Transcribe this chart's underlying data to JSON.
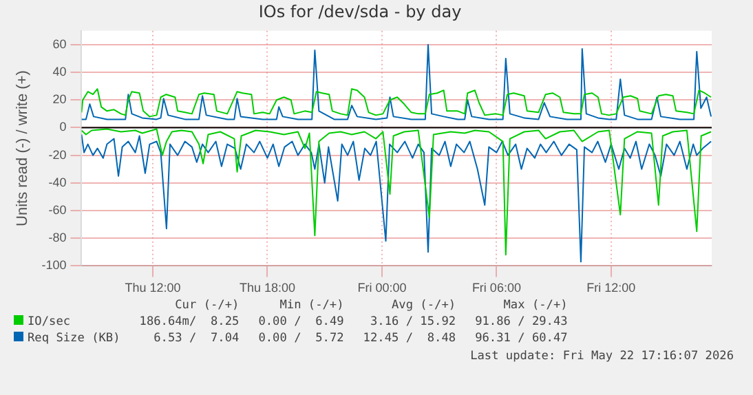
{
  "chart_data": {
    "type": "line",
    "title": "IOs for /dev/sda - by day",
    "ylabel": "Units read (-) / write (+)",
    "xlim": [
      "2026-05-21T08:16",
      "2026-05-22T17:16"
    ],
    "ylim": [
      -100,
      70
    ],
    "xticks": [
      {
        "value": "2026-05-21T12:00",
        "label": "Thu 12:00"
      },
      {
        "value": "2026-05-21T18:00",
        "label": "Thu 18:00"
      },
      {
        "value": "2026-05-22T00:00",
        "label": "Fri 00:00"
      },
      {
        "value": "2026-05-22T06:00",
        "label": "Fri 06:00"
      },
      {
        "value": "2026-05-22T12:00",
        "label": "Fri 12:00"
      }
    ],
    "yticks": [
      -100,
      -80,
      -60,
      -40,
      -20,
      0,
      20,
      40,
      60
    ],
    "grid": true,
    "legend": "bottom",
    "ref_lines": [
      {
        "axis": "y",
        "value": 0,
        "color": "#000000"
      }
    ],
    "annotations": [
      "Cur (-/+)",
      "Min (-/+)",
      "Avg (-/+)",
      "Max (-/+)",
      "186.64m/  8.25",
      "0.00 /  6.49",
      "3.16 / 15.92",
      "91.86 / 29.43",
      "6.53 /  7.04",
      "0.00 /  5.72",
      "12.45 /  8.48",
      "96.31 / 60.47",
      "Last update: Fri May 22 17:16:07 2026"
    ],
    "series": [
      {
        "name": "IO/sec",
        "color": "#00cc00",
        "x": [
          "2026-05-21T08:16",
          "2026-05-21T08:20",
          "2026-05-21T08:36",
          "2026-05-21T08:52",
          "2026-05-21T09:06",
          "2026-05-21T09:18",
          "2026-05-21T09:36",
          "2026-05-21T09:58",
          "2026-05-21T10:20",
          "2026-05-21T10:34",
          "2026-05-21T10:43",
          "2026-05-21T10:54",
          "2026-05-21T11:18",
          "2026-05-21T11:30",
          "2026-05-21T11:50",
          "2026-05-21T12:12",
          "2026-05-21T12:25",
          "2026-05-21T12:42",
          "2026-05-21T13:10",
          "2026-05-21T13:18",
          "2026-05-21T13:41",
          "2026-05-21T14:03",
          "2026-05-21T14:25",
          "2026-05-21T14:42",
          "2026-05-21T15:12",
          "2026-05-21T15:21",
          "2026-05-21T15:54",
          "2026-05-21T16:25",
          "2026-05-21T16:42",
          "2026-05-21T17:10",
          "2026-05-21T17:18",
          "2026-05-21T17:45",
          "2026-05-21T18:07",
          "2026-05-21T18:29",
          "2026-05-21T18:52",
          "2026-05-21T19:14",
          "2026-05-21T19:24",
          "2026-05-21T19:58",
          "2026-05-21T20:20",
          "2026-05-21T20:34",
          "2026-05-21T20:52",
          "2026-05-21T21:14",
          "2026-05-21T21:24",
          "2026-05-21T21:50",
          "2026-05-21T22:12",
          "2026-05-21T22:25",
          "2026-05-21T22:42",
          "2026-05-21T23:05",
          "2026-05-21T23:18",
          "2026-05-21T23:41",
          "2026-05-22T00:03",
          "2026-05-22T00:25",
          "2026-05-22T00:48",
          "2026-05-22T01:10",
          "2026-05-22T01:32",
          "2026-05-22T01:54",
          "2026-05-22T02:16",
          "2026-05-22T02:29",
          "2026-05-22T02:54",
          "2026-05-22T03:14",
          "2026-05-22T03:24",
          "2026-05-22T03:58",
          "2026-05-22T04:20",
          "2026-05-22T04:29",
          "2026-05-22T04:52",
          "2026-05-22T05:05",
          "2026-05-22T05:23",
          "2026-05-22T05:58",
          "2026-05-22T06:20",
          "2026-05-22T06:34",
          "2026-05-22T06:54",
          "2026-05-22T07:27",
          "2026-05-22T07:36",
          "2026-05-22T08:12",
          "2026-05-22T08:34",
          "2026-05-22T08:56",
          "2026-05-22T09:19",
          "2026-05-22T09:30",
          "2026-05-22T10:03",
          "2026-05-22T10:25",
          "2026-05-22T10:36",
          "2026-05-22T11:00",
          "2026-05-22T11:19",
          "2026-05-22T11:30",
          "2026-05-22T11:54",
          "2026-05-22T12:16",
          "2026-05-22T12:38",
          "2026-05-22T13:01",
          "2026-05-22T13:23",
          "2026-05-22T13:30",
          "2026-05-22T14:07",
          "2026-05-22T14:29",
          "2026-05-22T14:52",
          "2026-05-22T15:14",
          "2026-05-22T15:24",
          "2026-05-22T15:58",
          "2026-05-22T16:20",
          "2026-05-22T16:36",
          "2026-05-22T16:54",
          "2026-05-22T17:14"
        ],
        "values": [
          11,
          20,
          26,
          24,
          28,
          15,
          12,
          13,
          10,
          9,
          20,
          26,
          25,
          12,
          8,
          9,
          22,
          24,
          22,
          12,
          11,
          10,
          24,
          25,
          24,
          12,
          10,
          26,
          25,
          24,
          10,
          11,
          10,
          20,
          22,
          20,
          10,
          12,
          11,
          26,
          25,
          24,
          12,
          10,
          9,
          28,
          27,
          22,
          11,
          9,
          10,
          20,
          22,
          17,
          11,
          10,
          10,
          24,
          25,
          27,
          12,
          12,
          10,
          25,
          27,
          18,
          9,
          10,
          9,
          24,
          25,
          23,
          12,
          11,
          24,
          25,
          22,
          11,
          10,
          10,
          24,
          25,
          22,
          10,
          9,
          10,
          22,
          23,
          21,
          12,
          10,
          23,
          24,
          23,
          12,
          11,
          10,
          27,
          25,
          22
        ]
      },
      {
        "color": "#00cc00",
        "x": [
          "2026-05-21T08:16",
          "2026-05-21T08:30",
          "2026-05-21T08:48",
          "2026-05-21T09:36",
          "2026-05-21T10:20",
          "2026-05-21T11:05",
          "2026-05-21T11:27",
          "2026-05-21T12:12",
          "2026-05-21T12:30",
          "2026-05-21T12:43",
          "2026-05-21T13:00",
          "2026-05-21T13:30",
          "2026-05-21T14:03",
          "2026-05-21T14:25",
          "2026-05-21T14:38",
          "2026-05-21T14:54",
          "2026-05-21T15:32",
          "2026-05-21T16:16",
          "2026-05-21T16:25",
          "2026-05-21T16:38",
          "2026-05-21T17:23",
          "2026-05-21T18:07",
          "2026-05-21T18:52",
          "2026-05-21T19:36",
          "2026-05-21T19:58",
          "2026-05-21T20:12",
          "2026-05-21T20:29",
          "2026-05-21T20:42",
          "2026-05-21T21:14",
          "2026-05-21T21:50",
          "2026-05-21T22:25",
          "2026-05-21T23:05",
          "2026-05-21T23:41",
          "2026-05-22T00:03",
          "2026-05-22T00:25",
          "2026-05-22T00:36",
          "2026-05-22T01:10",
          "2026-05-22T01:54",
          "2026-05-22T02:29",
          "2026-05-22T02:42",
          "2026-05-22T03:36",
          "2026-05-22T04:20",
          "2026-05-22T04:52",
          "2026-05-22T05:36",
          "2026-05-22T06:20",
          "2026-05-22T06:29",
          "2026-05-22T06:42",
          "2026-05-22T07:27",
          "2026-05-22T08:12",
          "2026-05-22T08:34",
          "2026-05-22T09:19",
          "2026-05-22T10:03",
          "2026-05-22T10:29",
          "2026-05-22T11:19",
          "2026-05-22T11:54",
          "2026-05-22T12:29",
          "2026-05-22T12:42",
          "2026-05-22T13:23",
          "2026-05-22T14:07",
          "2026-05-22T14:29",
          "2026-05-22T14:42",
          "2026-05-22T15:14",
          "2026-05-22T15:58",
          "2026-05-22T16:29",
          "2026-05-22T16:43",
          "2026-05-22T17:14"
        ],
        "values": [
          -2,
          -5,
          -2,
          -1,
          -3,
          -2,
          -4,
          -1,
          -20,
          -10,
          -3,
          -2,
          -3,
          -12,
          -26,
          -5,
          -3,
          -8,
          -32,
          -6,
          -2,
          -3,
          -5,
          -3,
          -15,
          -4,
          -78,
          -10,
          -4,
          -3,
          -5,
          -3,
          -8,
          -3,
          -48,
          -6,
          -3,
          -2,
          -65,
          -5,
          -3,
          -4,
          -2,
          -3,
          -10,
          -92,
          -8,
          -3,
          -2,
          -8,
          -3,
          -2,
          -10,
          -3,
          -2,
          -63,
          -8,
          -3,
          -4,
          -56,
          -6,
          -3,
          -2,
          -75,
          -6,
          -3
        ]
      },
      {
        "name": "Req Size (KB)",
        "color": "#0066b3",
        "x": [
          "2026-05-21T08:16",
          "2026-05-21T08:30",
          "2026-05-21T08:42",
          "2026-05-21T08:54",
          "2026-05-21T09:36",
          "2026-05-21T10:20",
          "2026-05-21T10:34",
          "2026-05-21T10:43",
          "2026-05-21T10:54",
          "2026-05-21T11:27",
          "2026-05-21T12:12",
          "2026-05-21T12:25",
          "2026-05-21T12:34",
          "2026-05-21T12:48",
          "2026-05-21T13:41",
          "2026-05-21T14:25",
          "2026-05-21T14:36",
          "2026-05-21T14:48",
          "2026-05-21T15:54",
          "2026-05-21T16:16",
          "2026-05-21T16:25",
          "2026-05-21T16:36",
          "2026-05-21T17:45",
          "2026-05-21T18:29",
          "2026-05-21T18:36",
          "2026-05-21T18:48",
          "2026-05-21T19:36",
          "2026-05-21T20:20",
          "2026-05-21T20:29",
          "2026-05-21T20:42",
          "2026-05-21T21:14",
          "2026-05-21T21:30",
          "2026-05-21T22:12",
          "2026-05-21T22:25",
          "2026-05-21T22:42",
          "2026-05-21T23:41",
          "2026-05-22T00:16",
          "2026-05-22T00:25",
          "2026-05-22T00:36",
          "2026-05-22T01:32",
          "2026-05-22T02:16",
          "2026-05-22T02:25",
          "2026-05-22T02:36",
          "2026-05-22T03:14",
          "2026-05-22T03:58",
          "2026-05-22T04:20",
          "2026-05-22T04:29",
          "2026-05-22T04:42",
          "2026-05-22T05:36",
          "2026-05-22T06:20",
          "2026-05-22T06:29",
          "2026-05-22T06:42",
          "2026-05-22T07:27",
          "2026-05-22T08:12",
          "2026-05-22T08:30",
          "2026-05-22T08:48",
          "2026-05-22T09:41",
          "2026-05-22T10:25",
          "2026-05-22T10:29",
          "2026-05-22T10:42",
          "2026-05-22T11:19",
          "2026-05-22T11:54",
          "2026-05-22T12:16",
          "2026-05-22T12:29",
          "2026-05-22T12:42",
          "2026-05-22T13:23",
          "2026-05-22T14:07",
          "2026-05-22T14:24",
          "2026-05-22T14:36",
          "2026-05-22T15:36",
          "2026-05-22T16:20",
          "2026-05-22T16:29",
          "2026-05-22T16:42",
          "2026-05-22T17:00",
          "2026-05-22T17:14"
        ],
        "values": [
          6,
          6,
          17,
          8,
          6,
          6,
          6,
          24,
          10,
          7,
          6,
          7,
          21,
          9,
          6,
          6,
          23,
          9,
          6,
          6,
          21,
          8,
          6,
          6,
          15,
          8,
          6,
          6,
          56,
          12,
          8,
          6,
          6,
          16,
          8,
          6,
          7,
          22,
          8,
          6,
          6,
          60,
          10,
          8,
          6,
          6,
          20,
          8,
          6,
          6,
          50,
          10,
          7,
          6,
          18,
          8,
          6,
          6,
          57,
          10,
          7,
          6,
          6,
          35,
          9,
          6,
          6,
          22,
          8,
          6,
          6,
          55,
          14,
          22,
          8
        ]
      },
      {
        "color": "#0066b3",
        "x": [
          "2026-05-21T08:16",
          "2026-05-21T08:24",
          "2026-05-21T08:36",
          "2026-05-21T08:52",
          "2026-05-21T09:06",
          "2026-05-21T09:24",
          "2026-05-21T09:36",
          "2026-05-21T09:58",
          "2026-05-21T10:12",
          "2026-05-21T10:24",
          "2026-05-21T10:43",
          "2026-05-21T11:05",
          "2026-05-21T11:18",
          "2026-05-21T11:36",
          "2026-05-21T11:50",
          "2026-05-21T12:12",
          "2026-05-21T12:25",
          "2026-05-21T12:43",
          "2026-05-21T12:54",
          "2026-05-21T13:18",
          "2026-05-21T13:41",
          "2026-05-21T14:03",
          "2026-05-21T14:18",
          "2026-05-21T14:36",
          "2026-05-21T14:54",
          "2026-05-21T15:18",
          "2026-05-21T15:36",
          "2026-05-21T15:54",
          "2026-05-21T16:18",
          "2026-05-21T16:36",
          "2026-05-21T16:54",
          "2026-05-21T17:18",
          "2026-05-21T17:36",
          "2026-05-21T18:00",
          "2026-05-21T18:18",
          "2026-05-21T18:36",
          "2026-05-21T18:54",
          "2026-05-21T19:18",
          "2026-05-21T19:36",
          "2026-05-21T19:58",
          "2026-05-21T20:18",
          "2026-05-21T20:29",
          "2026-05-21T20:42",
          "2026-05-21T21:00",
          "2026-05-21T21:12",
          "2026-05-21T21:41",
          "2026-05-21T21:54",
          "2026-05-21T22:12",
          "2026-05-21T22:30",
          "2026-05-21T22:48",
          "2026-05-21T23:06",
          "2026-05-21T23:24",
          "2026-05-21T23:42",
          "2026-05-22T00:12",
          "2026-05-22T00:24",
          "2026-05-22T00:48",
          "2026-05-22T01:12",
          "2026-05-22T01:36",
          "2026-05-22T01:54",
          "2026-05-22T02:12",
          "2026-05-22T02:25",
          "2026-05-22T02:36",
          "2026-05-22T03:00",
          "2026-05-22T03:18",
          "2026-05-22T03:36",
          "2026-05-22T03:54",
          "2026-05-22T04:18",
          "2026-05-22T04:36",
          "2026-05-22T05:00",
          "2026-05-22T05:23",
          "2026-05-22T05:36",
          "2026-05-22T06:00",
          "2026-05-22T06:18",
          "2026-05-22T06:36",
          "2026-05-22T07:00",
          "2026-05-22T07:18",
          "2026-05-22T07:36",
          "2026-05-22T08:00",
          "2026-05-22T08:18",
          "2026-05-22T08:36",
          "2026-05-22T09:00",
          "2026-05-22T09:24",
          "2026-05-22T09:48",
          "2026-05-22T10:12",
          "2026-05-22T10:25",
          "2026-05-22T10:36",
          "2026-05-22T11:00",
          "2026-05-22T11:18",
          "2026-05-22T11:42",
          "2026-05-22T12:00",
          "2026-05-22T12:24",
          "2026-05-22T12:42",
          "2026-05-22T13:00",
          "2026-05-22T13:18",
          "2026-05-22T13:36",
          "2026-05-22T14:00",
          "2026-05-22T14:18",
          "2026-05-22T14:36",
          "2026-05-22T14:54",
          "2026-05-22T15:18",
          "2026-05-22T15:36",
          "2026-05-22T15:58",
          "2026-05-22T16:18",
          "2026-05-22T16:29",
          "2026-05-22T16:48",
          "2026-05-22T17:14"
        ],
        "values": [
          -5,
          -18,
          -12,
          -20,
          -15,
          -22,
          -12,
          -8,
          -35,
          -14,
          -10,
          -18,
          -6,
          -33,
          -12,
          -10,
          -18,
          -73,
          -12,
          -20,
          -10,
          -14,
          -25,
          -12,
          -18,
          -10,
          -28,
          -12,
          -15,
          -30,
          -12,
          -18,
          -10,
          -22,
          -12,
          -28,
          -14,
          -10,
          -20,
          -12,
          -18,
          -30,
          -12,
          -40,
          -14,
          -53,
          -12,
          -20,
          -10,
          -38,
          -15,
          -20,
          -10,
          -82,
          -12,
          -18,
          -10,
          -22,
          -12,
          -18,
          -90,
          -15,
          -20,
          -10,
          -28,
          -12,
          -18,
          -10,
          -30,
          -56,
          -14,
          -18,
          -10,
          -20,
          -12,
          -30,
          -15,
          -22,
          -12,
          -18,
          -10,
          -20,
          -12,
          -16,
          -97,
          -14,
          -18,
          -10,
          -25,
          -12,
          -30,
          -15,
          -22,
          -10,
          -30,
          -12,
          -20,
          -35,
          -12,
          -20,
          -10,
          -30,
          -12,
          -20,
          -15,
          -10
        ]
      }
    ]
  }
}
